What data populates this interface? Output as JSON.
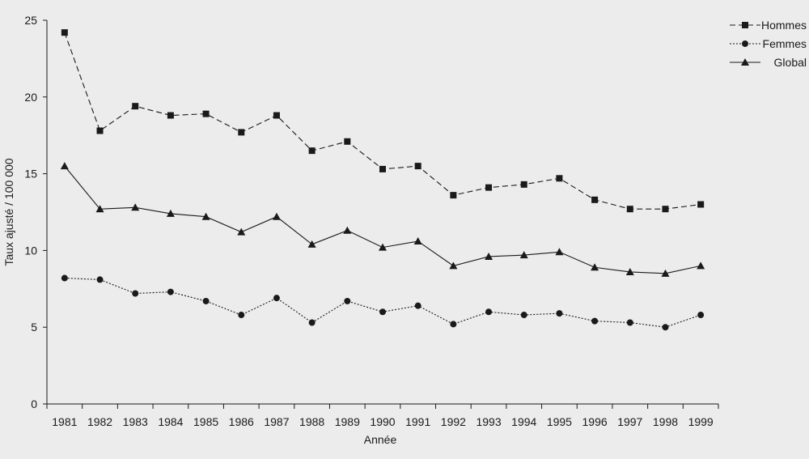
{
  "chart_data": {
    "type": "line",
    "categories": [
      "1981",
      "1982",
      "1983",
      "1984",
      "1985",
      "1986",
      "1987",
      "1988",
      "1989",
      "1990",
      "1991",
      "1992",
      "1993",
      "1994",
      "1995",
      "1996",
      "1997",
      "1998",
      "1999"
    ],
    "series": [
      {
        "name": "Hommes",
        "marker": "square",
        "dash": "dashed",
        "values": [
          24.2,
          17.8,
          19.4,
          18.8,
          18.9,
          17.7,
          18.8,
          16.5,
          17.1,
          15.3,
          15.5,
          13.6,
          14.1,
          14.3,
          14.7,
          13.3,
          12.7,
          12.7,
          13.0
        ]
      },
      {
        "name": "Femmes",
        "marker": "circle",
        "dash": "dotted",
        "values": [
          8.2,
          8.1,
          7.2,
          7.3,
          6.7,
          5.8,
          6.9,
          5.3,
          6.7,
          6.0,
          6.4,
          5.2,
          6.0,
          5.8,
          5.9,
          5.4,
          5.3,
          5.0,
          5.8
        ]
      },
      {
        "name": "Global",
        "marker": "triangle",
        "dash": "solid",
        "values": [
          15.5,
          12.7,
          12.8,
          12.4,
          12.2,
          11.2,
          12.2,
          10.4,
          11.3,
          10.2,
          10.6,
          9.0,
          9.6,
          9.7,
          9.9,
          8.9,
          8.6,
          8.5,
          9.0
        ]
      }
    ],
    "yticks": [
      0,
      5,
      10,
      15,
      20,
      25
    ],
    "ylim": [
      0,
      25
    ],
    "xlabel": "Année",
    "ylabel": "Taux ajusté / 100 000",
    "legend_position": "top-right",
    "grid": false,
    "colors": {
      "line": "#1a1a1a",
      "background": "#ececec"
    }
  }
}
